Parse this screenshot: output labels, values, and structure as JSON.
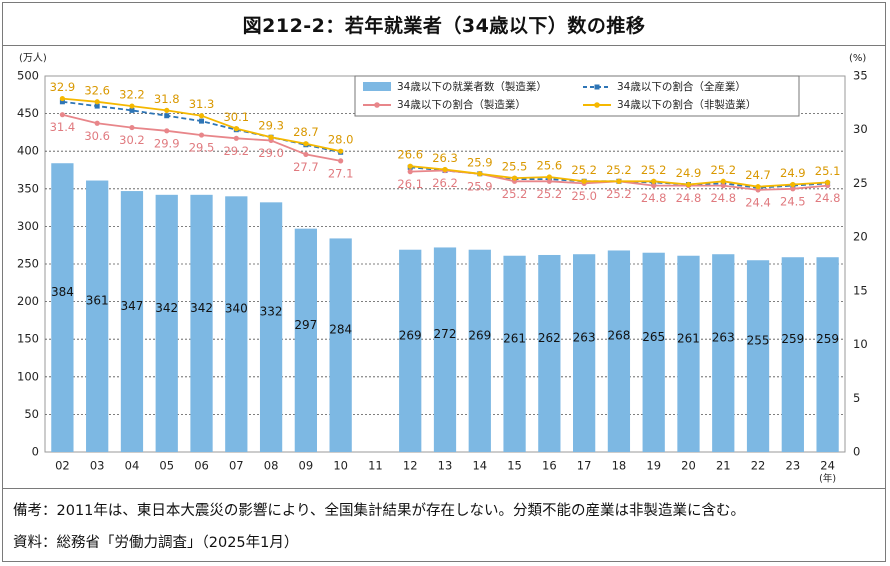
{
  "title": "図212-2：若年就業者（34歳以下）数の推移",
  "notes": {
    "remark": "備考：2011年は、東日本大震災の影響により、全国集計結果が存在しない。分類不能の産業は非製造業に含む。",
    "source": "資料：総務省「労働力調査」（2025年1月）"
  },
  "chart_data": {
    "type": "bar",
    "categories": [
      "02",
      "03",
      "04",
      "05",
      "06",
      "07",
      "08",
      "09",
      "10",
      "11",
      "12",
      "13",
      "14",
      "15",
      "16",
      "17",
      "18",
      "19",
      "20",
      "21",
      "22",
      "23",
      "24"
    ],
    "x_unit": "(年)",
    "y_left_unit": "(万人)",
    "y_right_unit": "(%)",
    "ylim_left": [
      0,
      500
    ],
    "ylim_right": [
      0,
      35
    ],
    "y_left_ticks": [
      "0",
      "50",
      "100",
      "150",
      "200",
      "250",
      "300",
      "350",
      "400",
      "450",
      "500"
    ],
    "y_right_ticks": [
      "0",
      "5",
      "10",
      "15",
      "20",
      "25",
      "30",
      "35"
    ],
    "grid": true,
    "legend_position": "top-right",
    "bars": {
      "name": "34歳以下の就業者数（製造業）",
      "color": "#7db8e3",
      "values": [
        384,
        361,
        347,
        342,
        342,
        340,
        332,
        297,
        284,
        null,
        269,
        272,
        269,
        261,
        262,
        263,
        268,
        265,
        261,
        263,
        255,
        259,
        259
      ]
    },
    "lines": [
      {
        "name": "34歳以下の割合（全産業）",
        "color": "#2e75b6",
        "style": "dashed",
        "values": [
          32.6,
          32.2,
          31.8,
          31.3,
          30.8,
          30.0,
          29.3,
          28.6,
          27.9,
          null,
          26.5,
          26.2,
          25.9,
          25.4,
          25.4,
          25.2,
          25.2,
          25.1,
          24.9,
          25.0,
          24.6,
          24.8,
          25.0
        ]
      },
      {
        "name": "34歳以下の割合（製造業）",
        "color": "#e8868a",
        "style": "solid",
        "values": [
          31.4,
          30.6,
          30.2,
          29.9,
          29.5,
          29.2,
          29.0,
          27.7,
          27.1,
          null,
          26.1,
          26.2,
          25.9,
          25.2,
          25.2,
          25.0,
          25.2,
          24.8,
          24.8,
          24.8,
          24.4,
          24.5,
          24.8
        ]
      },
      {
        "name": "34歳以下の割合（非製造業）",
        "color": "#f5b800",
        "style": "solid",
        "values": [
          32.9,
          32.6,
          32.2,
          31.8,
          31.3,
          30.1,
          29.3,
          28.7,
          28.0,
          null,
          26.6,
          26.3,
          25.9,
          25.5,
          25.6,
          25.2,
          25.2,
          25.2,
          24.9,
          25.2,
          24.7,
          24.9,
          25.1
        ]
      }
    ],
    "labeled_series": [
      "bars",
      "製造業",
      "非製造業"
    ]
  }
}
